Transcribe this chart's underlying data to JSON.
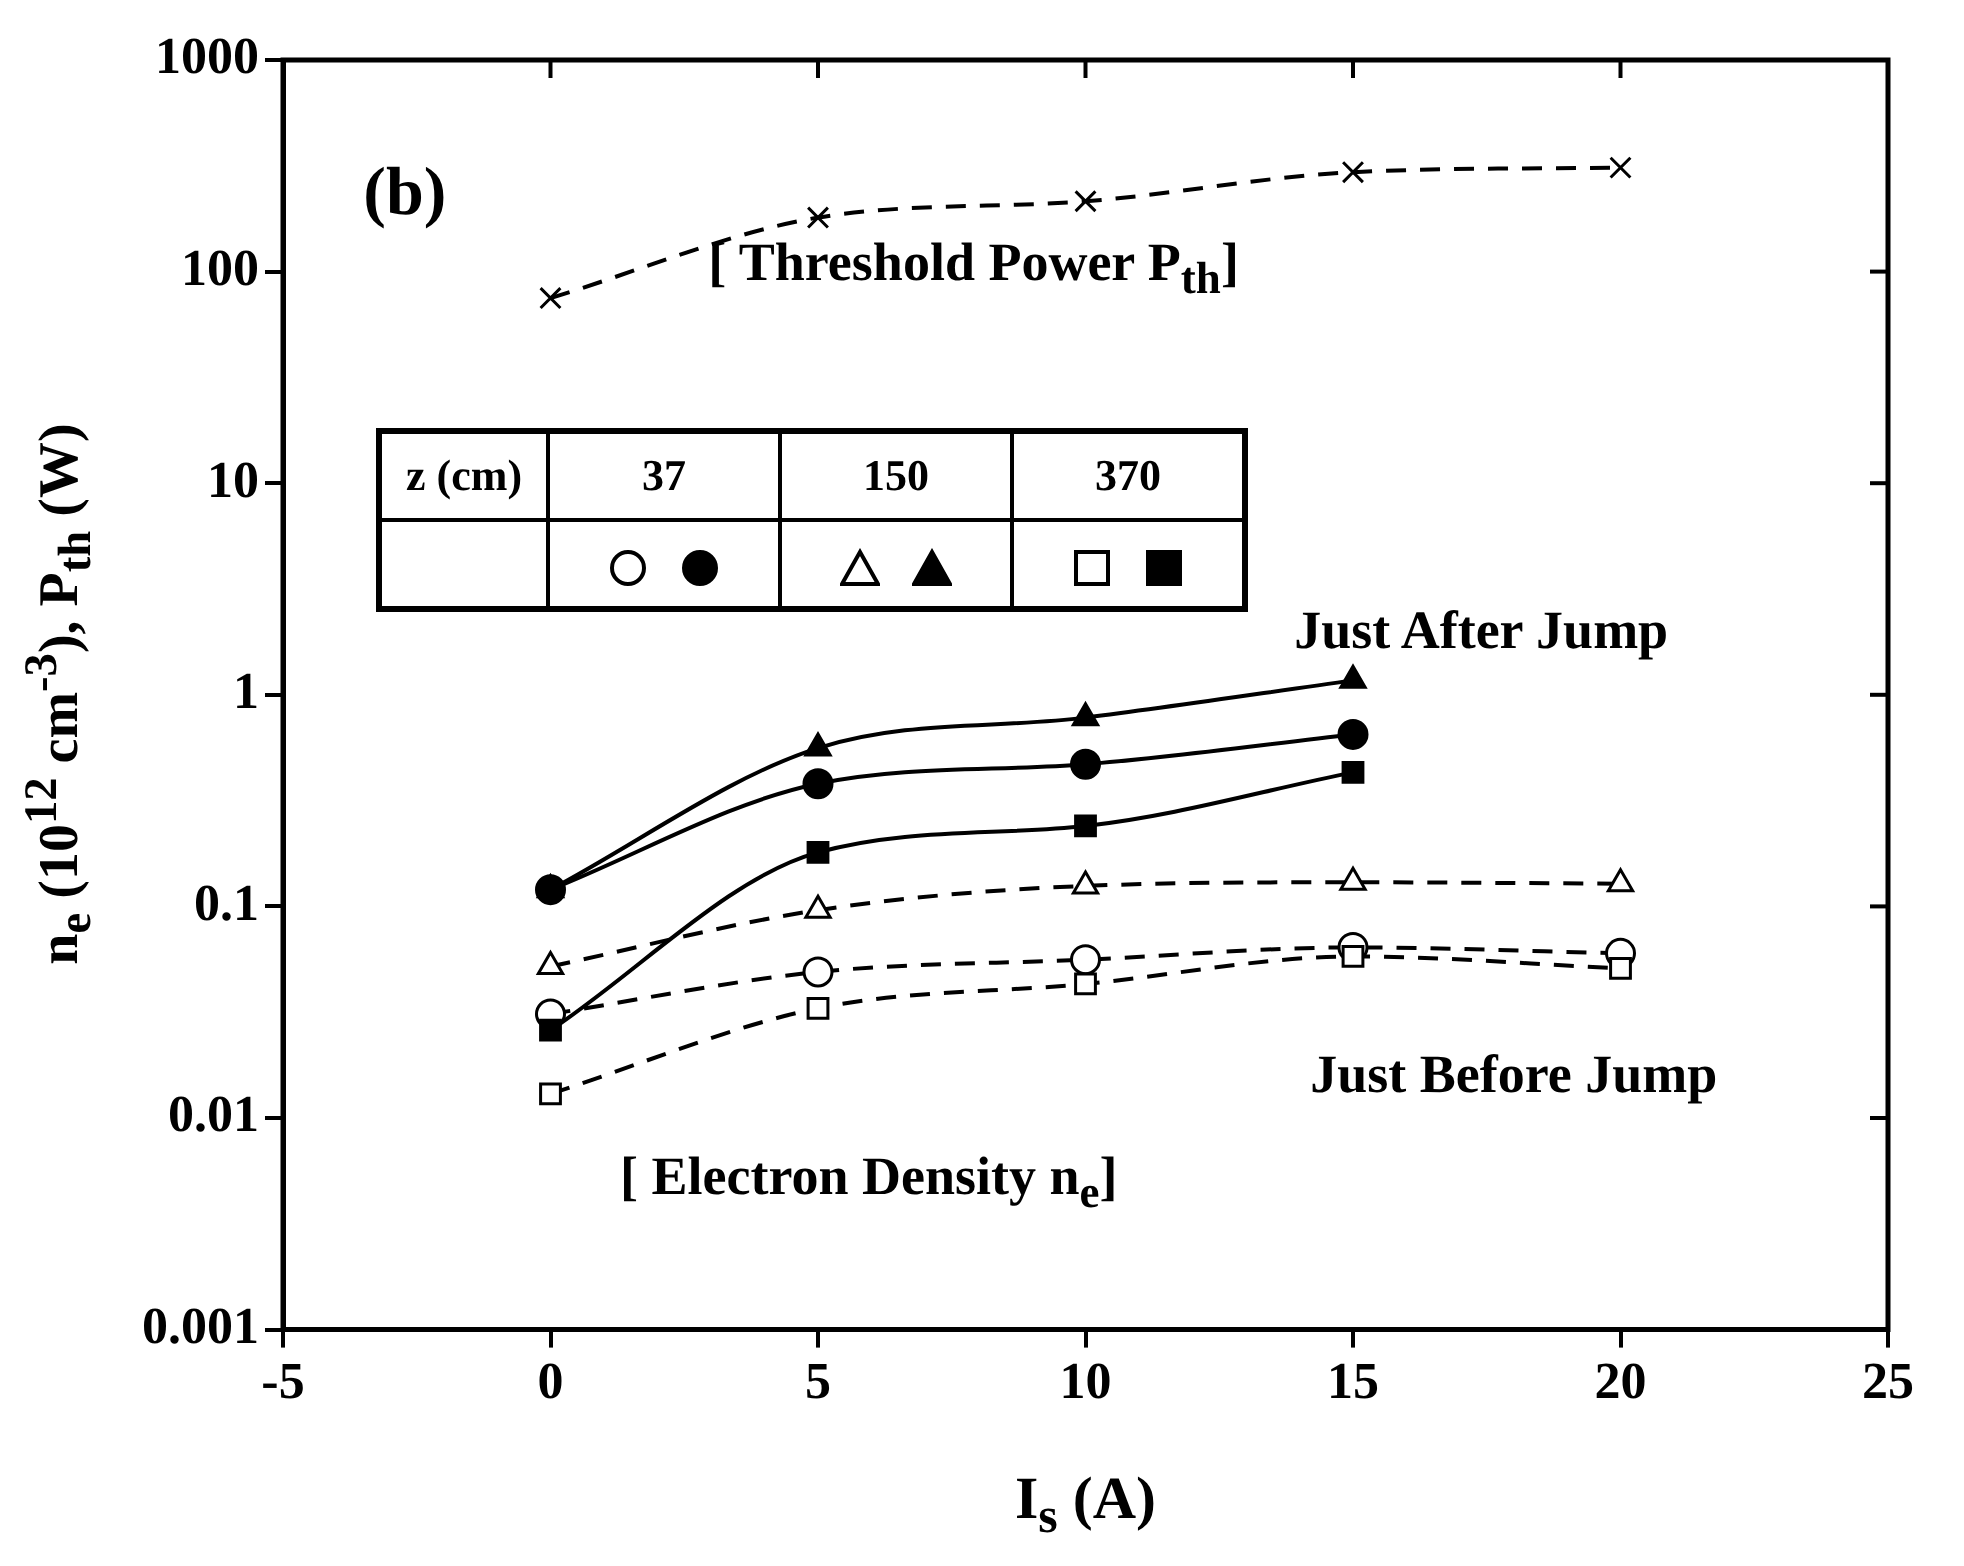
{
  "chart_data": {
    "type": "line",
    "xlabel": "I$_{s}$ (A)",
    "ylabel": "n$_{e}$ (10$^{12}$ cm$^{-3}$), P$_{th}$ (W)",
    "x": [
      0,
      5,
      10,
      15,
      20
    ],
    "series": [
      {
        "color": "#000000",
        "marker": "cross",
        "line_style": "dashed",
        "values": [
          75,
          180,
          215,
          295,
          310
        ]
      },
      {
        "color": "#000000",
        "marker": "circle",
        "line_style": "dashed",
        "values": [
          0.031,
          0.049,
          0.056,
          0.064,
          0.06
        ]
      },
      {
        "color": "#000000",
        "marker": "circle",
        "line_style": "solid",
        "values": [
          0.12,
          0.38,
          0.47,
          0.65,
          null
        ]
      },
      {
        "color": "#000000",
        "marker": "triangle",
        "line_style": "dashed",
        "values": [
          0.052,
          0.096,
          0.125,
          0.13,
          0.128
        ]
      },
      {
        "color": "#000000",
        "marker": "triangle",
        "line_style": "solid",
        "values": [
          0.12,
          0.56,
          0.78,
          1.17,
          null
        ]
      },
      {
        "color": "#000000",
        "marker": "square",
        "line_style": "dashed",
        "values": [
          0.013,
          0.033,
          0.043,
          0.058,
          0.051
        ]
      },
      {
        "color": "#000000",
        "marker": "square",
        "line_style": "solid",
        "values": [
          0.026,
          0.18,
          0.24,
          0.43,
          null
        ]
      }
    ],
    "annotations": [
      "(b)",
      "[ Threshold Power P$_{th}$]",
      "Just After Jump",
      "Just Before Jump",
      "[ Electron Density n$_{e}$]",
      "z (cm)",
      "37",
      "150",
      "370"
    ],
    "log": "y",
    "xlim": [
      -5,
      25
    ],
    "xticks": [
      -5,
      0,
      5,
      10,
      15,
      20,
      25
    ],
    "ylim": [
      0.001,
      1000
    ],
    "yticks": [
      0.001,
      0.01,
      0.1,
      1,
      10,
      100,
      1000
    ],
    "grid": false
  }
}
